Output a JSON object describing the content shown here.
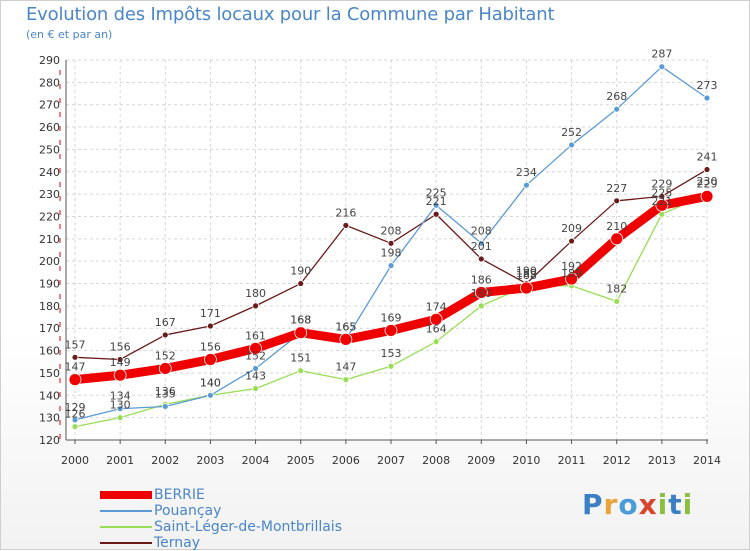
{
  "title": "Evolution des Impôts locaux pour la Commune par Habitant",
  "subtitle": "(en € et par an)",
  "logo": "Proxiti",
  "chart_data": {
    "type": "line",
    "title": "Evolution des Impôts locaux pour la Commune par Habitant",
    "ylabel": "(en € et par an)",
    "xlabel": "",
    "x": [
      "2000",
      "2001",
      "2002",
      "2003",
      "2004",
      "2005",
      "2006",
      "2007",
      "2008",
      "2009",
      "2010",
      "2011",
      "2012",
      "2013",
      "2014"
    ],
    "ylim": [
      120,
      290
    ],
    "yticks": [
      120,
      130,
      140,
      150,
      160,
      170,
      180,
      190,
      200,
      210,
      220,
      230,
      240,
      250,
      260,
      270,
      280,
      290
    ],
    "grid": true,
    "series": [
      {
        "name": "Ternay",
        "color": "#6b1a1a",
        "values": [
          157,
          156,
          167,
          171,
          180,
          190,
          216,
          208,
          221,
          201,
          190,
          209,
          227,
          229,
          241
        ]
      },
      {
        "name": "Saint-Léger-de-Montbrillais",
        "color": "#99dd55",
        "values": [
          126,
          130,
          136,
          140,
          143,
          151,
          147,
          153,
          164,
          180,
          189,
          189,
          182,
          221,
          230
        ]
      },
      {
        "name": "Pouançay",
        "color": "#5b9bd5",
        "values": [
          129,
          134,
          135,
          140,
          152,
          168,
          165,
          198,
          225,
          208,
          234,
          252,
          268,
          287,
          273
        ]
      },
      {
        "name": "BERRIE",
        "color": "#ee0000",
        "values": [
          147,
          149,
          152,
          156,
          161,
          168,
          165,
          169,
          174,
          186,
          188,
          192,
          210,
          225,
          229
        ]
      }
    ],
    "legend": [
      "BERRIE",
      "Pouançay",
      "Saint-Léger-de-Montbrillais",
      "Ternay"
    ]
  }
}
